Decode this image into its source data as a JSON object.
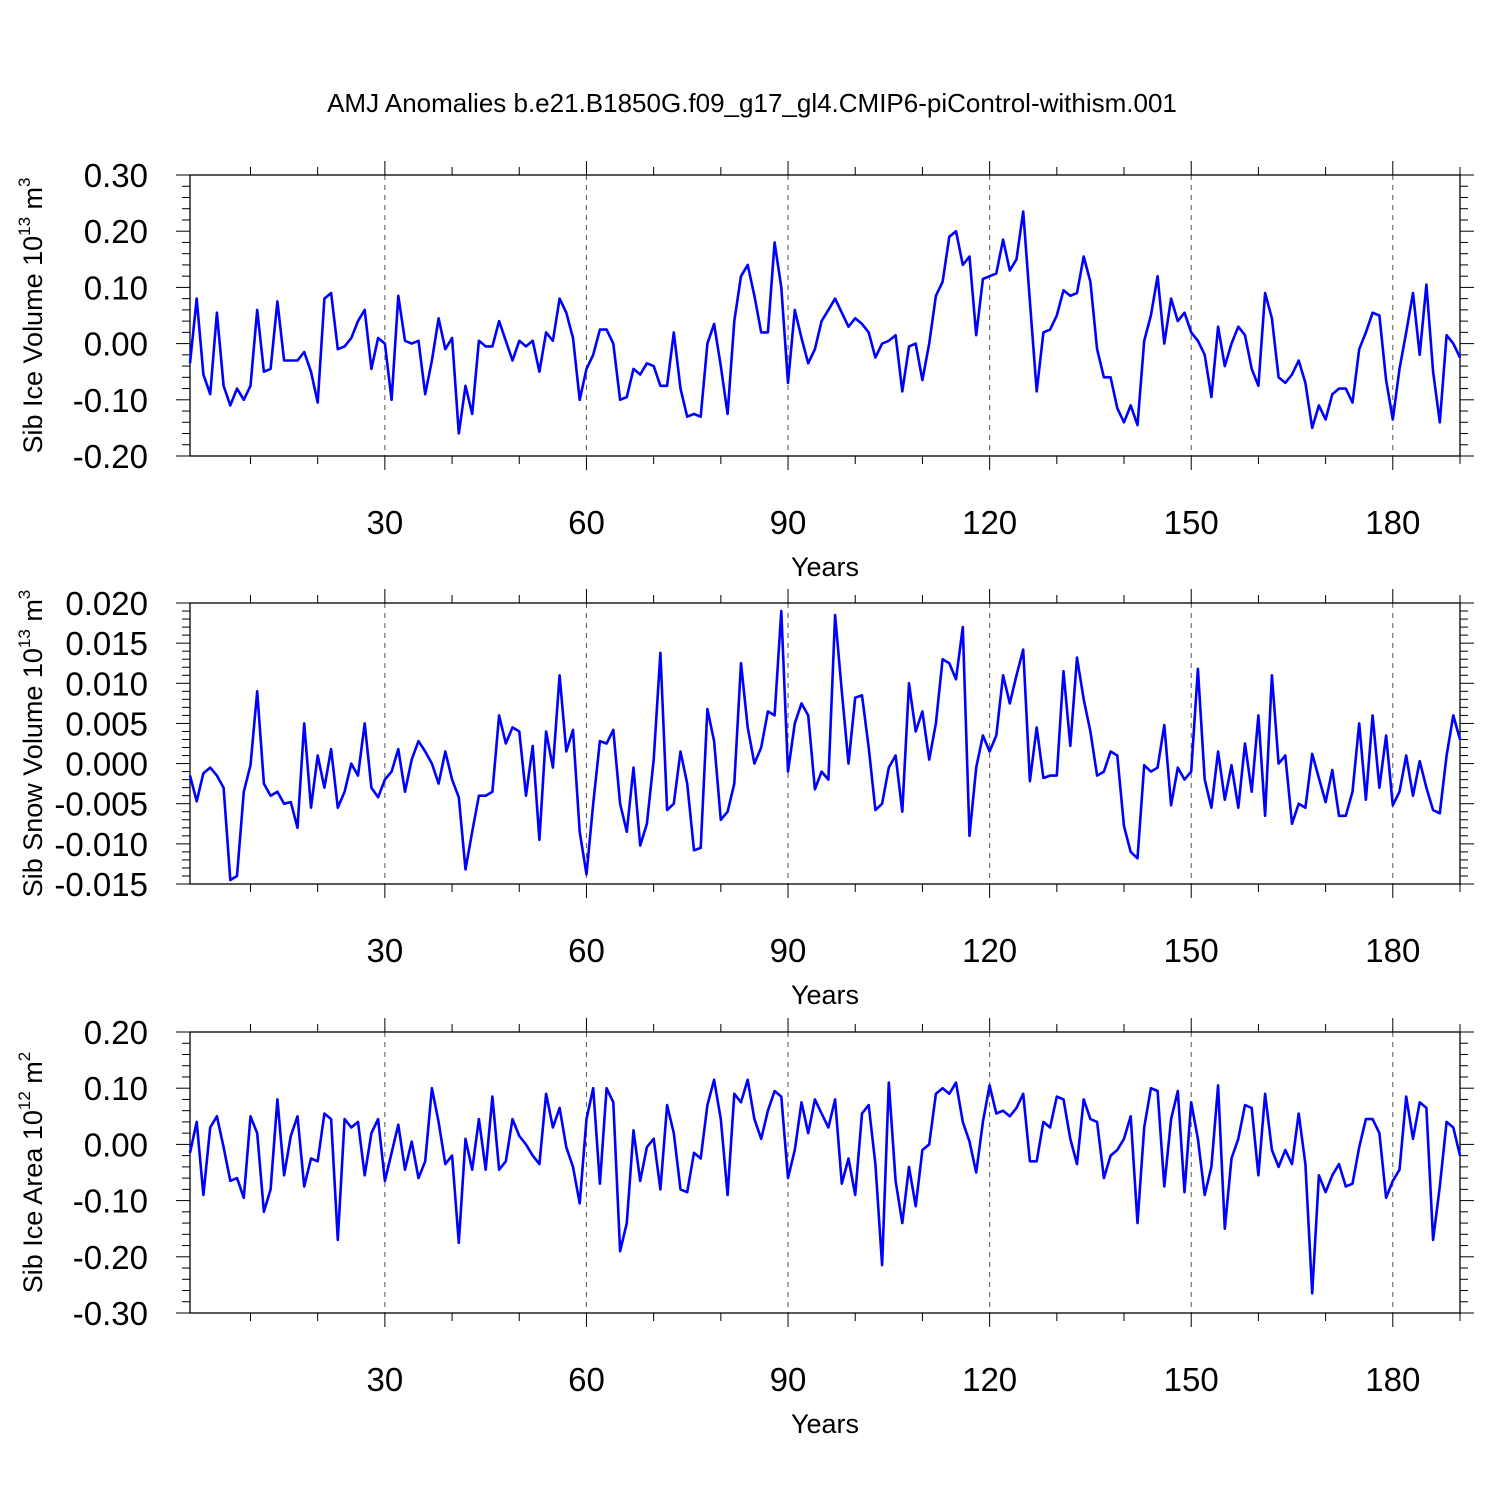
{
  "figure": {
    "title": "AMJ Anomalies b.e21.B1850G.f09_g17_gl4.CMIP6-piControl-withism.001"
  },
  "colors": {
    "series": "#0000ff",
    "axis": "#000000",
    "grid": "#555555"
  },
  "chart_data": [
    {
      "type": "line",
      "ylabel": "Sib Ice Volume 10",
      "ylabel_exp": "13",
      "ylabel_unit": " m",
      "ylabel_unit_exp": "3",
      "xlabel": "Years",
      "xlim": [
        1,
        190
      ],
      "ylim": [
        -0.2,
        0.3
      ],
      "x_ticks": [
        30,
        60,
        90,
        120,
        150,
        180
      ],
      "y_ticks": [
        -0.2,
        -0.1,
        0.0,
        0.1,
        0.2,
        0.3
      ],
      "y_tick_labels": [
        "-0.20",
        "-0.10",
        "0.00",
        "0.10",
        "0.20",
        "0.30"
      ],
      "grid": "vertical dashed at x ticks",
      "series": [
        {
          "values": [
            -0.035,
            0.08,
            -0.055,
            -0.09,
            0.055,
            -0.075,
            -0.11,
            -0.08,
            -0.1,
            -0.075,
            0.06,
            -0.05,
            -0.045,
            0.075,
            -0.03,
            -0.03,
            -0.03,
            -0.015,
            -0.05,
            -0.105,
            0.08,
            0.09,
            -0.01,
            -0.005,
            0.01,
            0.04,
            0.06,
            -0.045,
            0.01,
            0.0,
            -0.1,
            0.085,
            0.005,
            0.0,
            0.005,
            -0.09,
            -0.03,
            0.045,
            -0.01,
            0.01,
            -0.16,
            -0.075,
            -0.125,
            0.005,
            -0.005,
            -0.005,
            0.04,
            0.005,
            -0.03,
            0.005,
            -0.005,
            0.005,
            -0.05,
            0.02,
            0.005,
            0.08,
            0.055,
            0.01,
            -0.1,
            -0.045,
            -0.02,
            0.025,
            0.025,
            0.0,
            -0.1,
            -0.095,
            -0.045,
            -0.055,
            -0.035,
            -0.04,
            -0.075,
            -0.075,
            0.02,
            -0.08,
            -0.13,
            -0.125,
            -0.13,
            0.0,
            0.035,
            -0.04,
            -0.125,
            0.04,
            0.12,
            0.14,
            0.085,
            0.02,
            0.02,
            0.18,
            0.1,
            -0.07,
            0.06,
            0.01,
            -0.035,
            -0.01,
            0.04,
            0.06,
            0.08,
            0.055,
            0.03,
            0.045,
            0.035,
            0.02,
            -0.025,
            0.0,
            0.005,
            0.015,
            -0.085,
            -0.005,
            0.0,
            -0.065,
            0.0,
            0.085,
            0.11,
            0.19,
            0.2,
            0.14,
            0.155,
            0.015,
            0.115,
            0.12,
            0.125,
            0.185,
            0.13,
            0.15,
            0.235,
            0.075,
            -0.085,
            0.02,
            0.025,
            0.05,
            0.095,
            0.085,
            0.09,
            0.155,
            0.11,
            -0.01,
            -0.06,
            -0.06,
            -0.115,
            -0.14,
            -0.11,
            -0.145,
            0.005,
            0.05,
            0.12,
            0.0,
            0.08,
            0.04,
            0.055,
            0.02,
            0.005,
            -0.02,
            -0.095,
            0.03,
            -0.04,
            0.0,
            0.03,
            0.015,
            -0.045,
            -0.075,
            0.09,
            0.045,
            -0.06,
            -0.07,
            -0.055,
            -0.03,
            -0.07,
            -0.15,
            -0.11,
            -0.135,
            -0.09,
            -0.08,
            -0.08,
            -0.105,
            -0.01,
            0.02,
            0.055,
            0.05,
            -0.065,
            -0.135,
            -0.045,
            0.02,
            0.09,
            -0.02,
            0.105,
            -0.05,
            -0.14,
            0.015,
            0.0,
            -0.025
          ]
        }
      ]
    },
    {
      "type": "line",
      "ylabel": "Sib Snow Volume 10",
      "ylabel_exp": "13",
      "ylabel_unit": " m",
      "ylabel_unit_exp": "3",
      "xlabel": "Years",
      "xlim": [
        1,
        190
      ],
      "ylim": [
        -0.015,
        0.02
      ],
      "x_ticks": [
        30,
        60,
        90,
        120,
        150,
        180
      ],
      "y_ticks": [
        -0.015,
        -0.01,
        -0.005,
        0.0,
        0.005,
        0.01,
        0.015,
        0.02
      ],
      "y_tick_labels": [
        "-0.015",
        "-0.010",
        "-0.005",
        "0.000",
        "0.005",
        "0.010",
        "0.015",
        "0.020"
      ],
      "grid": "vertical dashed at x ticks",
      "series": [
        {
          "values": [
            -0.0015,
            -0.0047,
            -0.0012,
            -0.0005,
            -0.0015,
            -0.003,
            -0.0145,
            -0.014,
            -0.0035,
            -0.0002,
            0.009,
            -0.0025,
            -0.004,
            -0.0035,
            -0.005,
            -0.0048,
            -0.008,
            0.005,
            -0.0055,
            0.001,
            -0.003,
            0.0018,
            -0.0055,
            -0.0035,
            0.0,
            -0.0015,
            0.005,
            -0.003,
            -0.0042,
            -0.002,
            -0.001,
            0.0018,
            -0.0035,
            0.0005,
            0.0028,
            0.0015,
            0.0,
            -0.0025,
            0.0015,
            -0.002,
            -0.0042,
            -0.0132,
            -0.0085,
            -0.004,
            -0.004,
            -0.0035,
            0.006,
            0.0025,
            0.0045,
            0.004,
            -0.004,
            0.0022,
            -0.0095,
            0.004,
            -0.0005,
            0.011,
            0.0015,
            0.0042,
            -0.0085,
            -0.0138,
            -0.005,
            0.0028,
            0.0025,
            0.0042,
            -0.005,
            -0.0085,
            -0.0005,
            -0.0102,
            -0.0075,
            0.0005,
            0.0138,
            -0.0058,
            -0.005,
            0.0015,
            -0.0025,
            -0.0108,
            -0.0105,
            0.0068,
            0.0028,
            -0.007,
            -0.006,
            -0.0025,
            0.0125,
            0.0045,
            0.0,
            0.002,
            0.0065,
            0.006,
            0.019,
            -0.001,
            0.005,
            0.0075,
            0.006,
            -0.0032,
            -0.001,
            -0.002,
            0.0185,
            0.009,
            0.0,
            0.0082,
            0.0085,
            0.002,
            -0.0058,
            -0.005,
            -0.0005,
            0.001,
            -0.006,
            0.01,
            0.004,
            0.0065,
            0.0005,
            0.005,
            0.013,
            0.0125,
            0.0105,
            0.017,
            -0.009,
            -0.0005,
            0.0035,
            0.0015,
            0.0035,
            0.011,
            0.0075,
            0.011,
            0.0142,
            -0.0022,
            0.0045,
            -0.0018,
            -0.0015,
            -0.0015,
            0.0115,
            0.0022,
            0.0132,
            0.008,
            0.004,
            -0.0015,
            -0.001,
            0.0015,
            0.001,
            -0.0078,
            -0.011,
            -0.0118,
            -0.0002,
            -0.001,
            -0.0005,
            0.0048,
            -0.0052,
            -0.0005,
            -0.002,
            -0.001,
            0.0118,
            -0.002,
            -0.0055,
            0.0015,
            -0.0045,
            -0.0002,
            -0.0055,
            0.0025,
            -0.0035,
            0.006,
            -0.0065,
            0.011,
            0.0,
            0.001,
            -0.0075,
            -0.005,
            -0.0055,
            0.0012,
            -0.0018,
            -0.0048,
            -0.0008,
            -0.0065,
            -0.0065,
            -0.0035,
            0.005,
            -0.0045,
            0.006,
            -0.003,
            0.0035,
            -0.0052,
            -0.0035,
            0.001,
            -0.004,
            0.0003,
            -0.003,
            -0.0058,
            -0.0062,
            0.001,
            0.006,
            0.003
          ]
        }
      ]
    },
    {
      "type": "line",
      "ylabel": "Sib Ice Area 10",
      "ylabel_exp": "12",
      "ylabel_unit": " m",
      "ylabel_unit_exp": "2",
      "xlabel": "Years",
      "xlim": [
        1,
        190
      ],
      "ylim": [
        -0.3,
        0.2
      ],
      "x_ticks": [
        30,
        60,
        90,
        120,
        150,
        180
      ],
      "y_ticks": [
        -0.3,
        -0.2,
        -0.1,
        0.0,
        0.1,
        0.2
      ],
      "y_tick_labels": [
        "-0.30",
        "-0.20",
        "-0.10",
        "0.00",
        "0.10",
        "0.20"
      ],
      "grid": "vertical dashed at x ticks",
      "series": [
        {
          "values": [
            -0.015,
            0.04,
            -0.09,
            0.03,
            0.05,
            -0.005,
            -0.065,
            -0.06,
            -0.095,
            0.05,
            0.02,
            -0.12,
            -0.08,
            0.08,
            -0.055,
            0.015,
            0.05,
            -0.075,
            -0.025,
            -0.03,
            0.055,
            0.045,
            -0.17,
            0.045,
            0.03,
            0.04,
            -0.055,
            0.02,
            0.045,
            -0.065,
            -0.015,
            0.035,
            -0.045,
            0.005,
            -0.06,
            -0.03,
            0.1,
            0.04,
            -0.035,
            -0.02,
            -0.175,
            0.01,
            -0.045,
            0.045,
            -0.045,
            0.085,
            -0.045,
            -0.03,
            0.045,
            0.015,
            0.0,
            -0.02,
            -0.035,
            0.09,
            0.03,
            0.065,
            -0.005,
            -0.04,
            -0.105,
            0.045,
            0.1,
            -0.07,
            0.1,
            0.075,
            -0.19,
            -0.14,
            0.025,
            -0.065,
            -0.005,
            0.01,
            -0.08,
            0.07,
            0.02,
            -0.08,
            -0.085,
            -0.015,
            -0.025,
            0.07,
            0.115,
            0.045,
            -0.09,
            0.09,
            0.075,
            0.115,
            0.045,
            0.01,
            0.06,
            0.095,
            0.085,
            -0.06,
            -0.01,
            0.075,
            0.02,
            0.08,
            0.055,
            0.03,
            0.08,
            -0.07,
            -0.025,
            -0.09,
            0.055,
            0.07,
            -0.035,
            -0.215,
            0.11,
            -0.065,
            -0.14,
            -0.04,
            -0.11,
            -0.01,
            0.0,
            0.09,
            0.1,
            0.09,
            0.11,
            0.04,
            0.005,
            -0.05,
            0.04,
            0.105,
            0.055,
            0.06,
            0.05,
            0.065,
            0.09,
            -0.03,
            -0.03,
            0.04,
            0.03,
            0.085,
            0.08,
            0.01,
            -0.035,
            0.08,
            0.045,
            0.04,
            -0.06,
            -0.02,
            -0.01,
            0.01,
            0.05,
            -0.14,
            0.03,
            0.1,
            0.095,
            -0.075,
            0.045,
            0.095,
            -0.085,
            0.075,
            0.01,
            -0.09,
            -0.04,
            0.105,
            -0.15,
            -0.025,
            0.01,
            0.07,
            0.065,
            -0.055,
            0.09,
            -0.01,
            -0.04,
            -0.01,
            -0.035,
            0.055,
            -0.035,
            -0.265,
            -0.055,
            -0.085,
            -0.055,
            -0.035,
            -0.075,
            -0.07,
            -0.005,
            0.045,
            0.045,
            0.02,
            -0.095,
            -0.065,
            -0.045,
            0.085,
            0.01,
            0.075,
            0.065,
            -0.17,
            -0.075,
            0.04,
            0.03,
            -0.02
          ]
        }
      ]
    }
  ]
}
